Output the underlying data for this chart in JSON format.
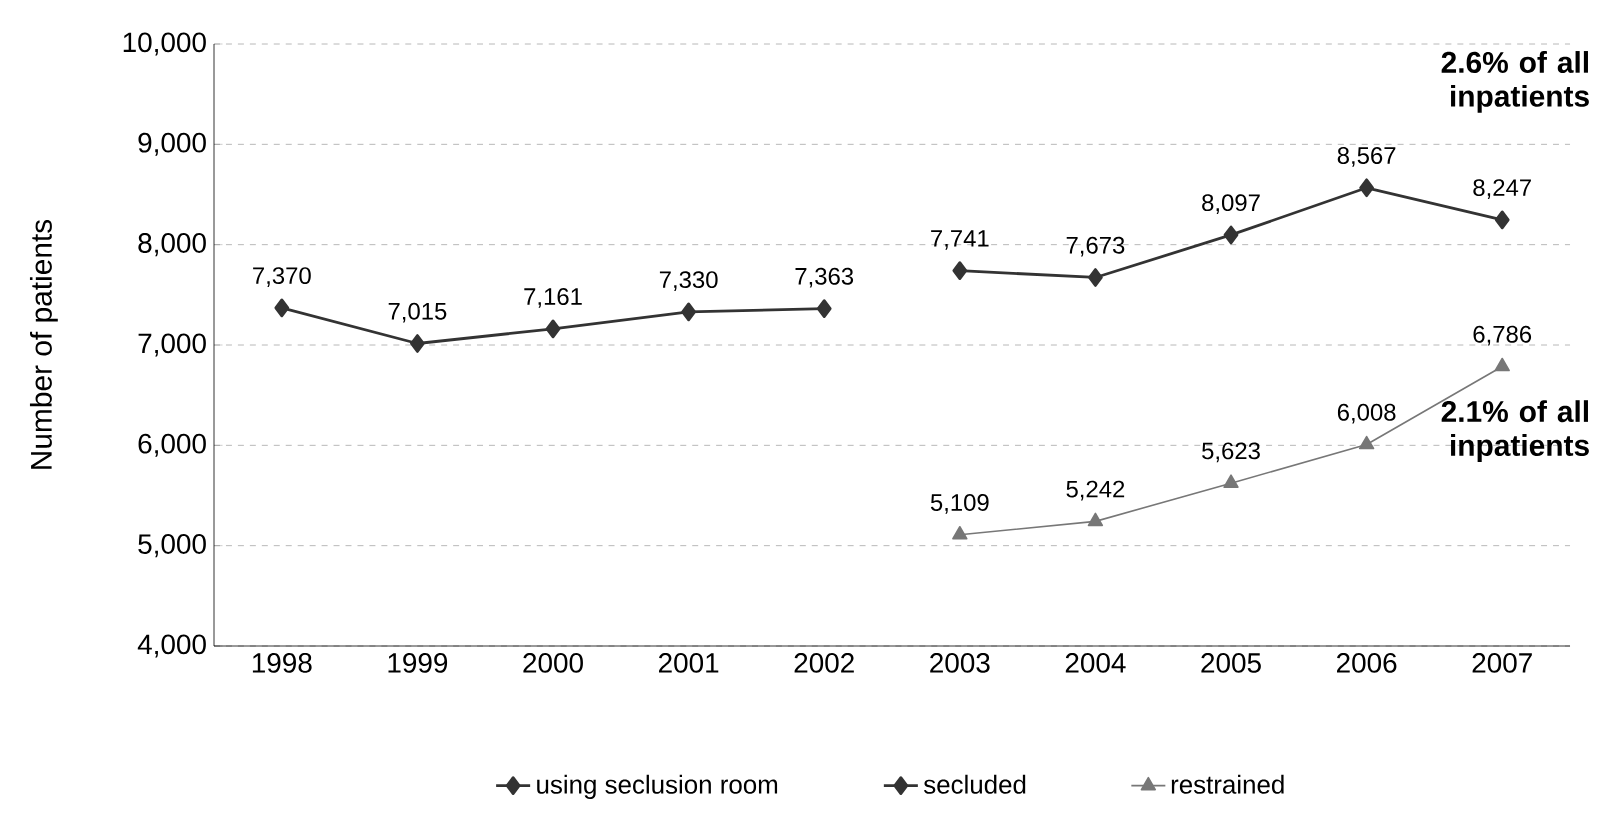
{
  "chart_data": {
    "type": "line",
    "ylabel": "Number of patients",
    "categories": [
      "1998",
      "1999",
      "2000",
      "2001",
      "2002",
      "2003",
      "2004",
      "2005",
      "2006",
      "2007"
    ],
    "series": [
      {
        "name": "using seclusion room",
        "color": "#333333",
        "marker": "diamond",
        "values": [
          7370,
          7015,
          7161,
          7330,
          7363,
          null,
          null,
          null,
          null,
          null
        ],
        "value_labels": [
          "7,370",
          "7,015",
          "7,161",
          "7,330",
          "7,363",
          null,
          null,
          null,
          null,
          null
        ]
      },
      {
        "name": "secluded",
        "color": "#333333",
        "marker": "diamond",
        "values": [
          null,
          null,
          null,
          null,
          null,
          7741,
          7673,
          8097,
          8567,
          8247
        ],
        "value_labels": [
          null,
          null,
          null,
          null,
          null,
          "7,741",
          "7,673",
          "8,097",
          "8,567",
          "8,247"
        ]
      },
      {
        "name": "restrained",
        "color": "#777777",
        "marker": "triangle",
        "values": [
          null,
          null,
          null,
          null,
          null,
          5109,
          5242,
          5623,
          6008,
          6786
        ],
        "value_labels": [
          null,
          null,
          null,
          null,
          null,
          "5,109",
          "5,242",
          "5,623",
          "6,008",
          "6,786"
        ]
      }
    ],
    "ylim": [
      4000,
      10000
    ],
    "yticks": [
      {
        "value": 4000,
        "label": "4,000"
      },
      {
        "value": 5000,
        "label": "5,000"
      },
      {
        "value": 6000,
        "label": "6,000"
      },
      {
        "value": 7000,
        "label": "7,000"
      },
      {
        "value": 8000,
        "label": "8,000"
      },
      {
        "value": 9000,
        "label": "9,000"
      },
      {
        "value": 10000,
        "label": "10,000"
      }
    ],
    "grid": "y",
    "legend": "bottom",
    "line_style": "solid",
    "annotations": [
      "2.6% of all inpatients",
      "2.1% of all inpatients"
    ]
  }
}
